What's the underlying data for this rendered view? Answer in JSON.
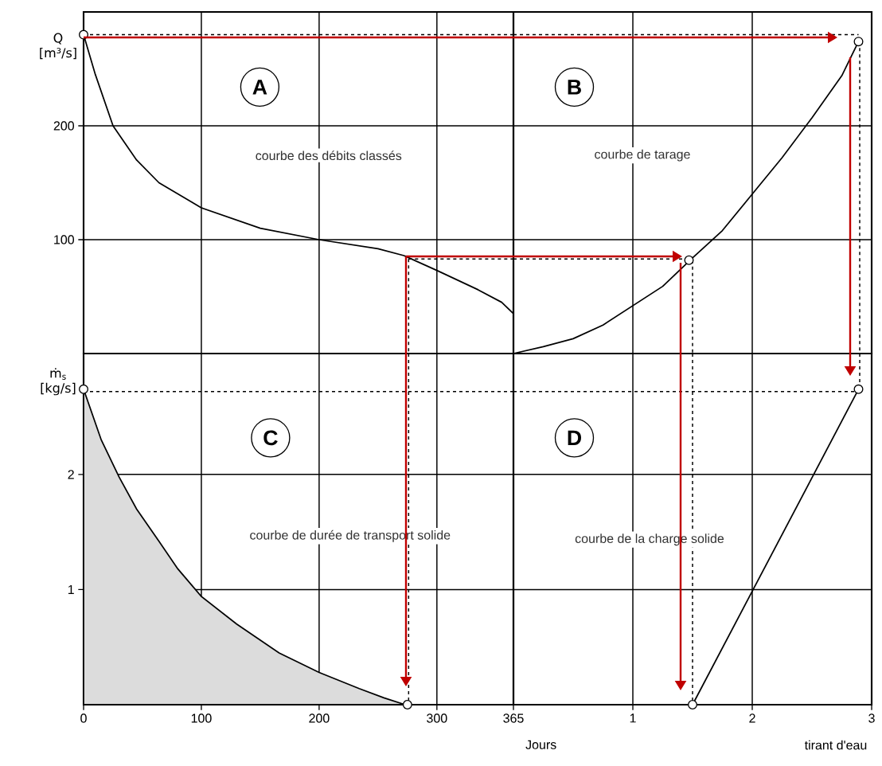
{
  "chart_data": [
    {
      "type": "line",
      "title": "A",
      "subtitle": "courbe des débits classés",
      "ylabel": "Q [m³/s]",
      "xlim": [
        0,
        365
      ],
      "ylim": [
        0,
        300
      ],
      "xticks": [
        0,
        100,
        200,
        300,
        365
      ],
      "yticks": [
        100,
        200
      ],
      "tick_labels": "y",
      "grid": true,
      "series": [
        {
          "color": "#000000",
          "x": [
            0,
            10,
            25,
            45,
            64,
            100,
            150,
            200,
            250,
            272,
            300,
            335,
            355,
            362,
            365,
            365
          ],
          "values": [
            280,
            245,
            200,
            170,
            150,
            128,
            110,
            100,
            92,
            86,
            73,
            56,
            45,
            38,
            35,
            0
          ]
        },
        {
          "color": "#000000",
          "line_style": "dashed",
          "x": [
            0,
            365
          ],
          "values": [
            280,
            280
          ]
        },
        {
          "color": "#000000",
          "line_style": "dashed",
          "x": [
            276,
            365
          ],
          "values": [
            83,
            83
          ]
        },
        {
          "color": "#000000",
          "line_style": "dashed",
          "x": [
            276,
            276
          ],
          "values": [
            83,
            0
          ]
        },
        {
          "type": "scatter",
          "marker": "circle",
          "color": "#000000",
          "x": [
            0
          ],
          "values": [
            280
          ]
        }
      ]
    },
    {
      "type": "line",
      "title": "B",
      "subtitle": "courbe de tarage",
      "xlim": [
        0,
        3
      ],
      "ylim": [
        0,
        300
      ],
      "xticks": [
        1,
        2,
        3
      ],
      "yticks": [
        100,
        200
      ],
      "tick_labels": false,
      "grid": true,
      "series": [
        {
          "color": "#000000",
          "x": [
            0,
            0.25,
            0.5,
            0.75,
            1,
            1.25,
            1.5,
            1.75,
            2,
            2.25,
            2.5,
            2.75,
            2.89
          ],
          "values": [
            0,
            6,
            13,
            25,
            42,
            59,
            84,
            108,
            140,
            172,
            207,
            244,
            274
          ]
        },
        {
          "color": "#000000",
          "line_style": "dashed",
          "x": [
            0,
            2.89
          ],
          "values": [
            280,
            280
          ]
        },
        {
          "color": "#000000",
          "line_style": "dashed",
          "x": [
            0,
            1.47
          ],
          "values": [
            83,
            83
          ]
        },
        {
          "color": "#000000",
          "line_style": "dashed",
          "x": [
            1.5,
            1.5
          ],
          "values": [
            82,
            0
          ]
        },
        {
          "color": "#000000",
          "line_style": "dashed",
          "x": [
            2.9,
            2.9
          ],
          "values": [
            274,
            0
          ]
        },
        {
          "type": "scatter",
          "marker": "circle",
          "color": "#000000",
          "x": [
            2.89,
            1.47
          ],
          "values": [
            274,
            82
          ]
        }
      ]
    },
    {
      "type": "line",
      "title": "C",
      "subtitle": "courbe de durée de transport solide",
      "ylabel": "ṁ$_{s}$ [kg/s]",
      "xlabel": "Jours",
      "xlim": [
        0,
        365
      ],
      "ylim": [
        0,
        3.05
      ],
      "xticks": [
        0,
        100,
        200,
        300,
        365
      ],
      "yticks": [
        1,
        2
      ],
      "grid": true,
      "series": [
        {
          "type": "area",
          "color": "#dcdcdc",
          "x": [
            0,
            15,
            30,
            45,
            64,
            80,
            100,
            130,
            166,
            200,
            234,
            255,
            273
          ],
          "values": [
            2.74,
            2.3,
            1.98,
            1.7,
            1.42,
            1.18,
            0.94,
            0.7,
            0.45,
            0.28,
            0.14,
            0.06,
            0
          ]
        },
        {
          "color": "#000000",
          "line_style": "dashed",
          "x": [
            0,
            365
          ],
          "values": [
            2.72,
            2.72
          ]
        },
        {
          "color": "#000000",
          "line_style": "dashed",
          "x": [
            276,
            276
          ],
          "values": [
            3.05,
            0
          ]
        },
        {
          "type": "scatter",
          "marker": "circle",
          "color": "#000000",
          "x": [
            0,
            275
          ],
          "values": [
            2.74,
            0
          ]
        }
      ]
    },
    {
      "type": "line",
      "title": "D",
      "subtitle": "courbe de la charge solide",
      "xlabel": "tirant d'eau",
      "xlim": [
        0,
        3
      ],
      "ylim": [
        0,
        3.05
      ],
      "xticks": [
        1,
        2,
        3
      ],
      "yticks": [
        1,
        2
      ],
      "tick_labels": "x",
      "grid": true,
      "series": [
        {
          "color": "#000000",
          "x": [
            1.5,
            2.89
          ],
          "values": [
            0,
            2.74
          ]
        },
        {
          "color": "#000000",
          "line_style": "dashed",
          "x": [
            0,
            2.89
          ],
          "values": [
            2.72,
            2.72
          ]
        },
        {
          "color": "#000000",
          "line_style": "dashed",
          "x": [
            1.5,
            1.5
          ],
          "values": [
            3.05,
            0
          ]
        },
        {
          "color": "#000000",
          "line_style": "dashed",
          "x": [
            2.9,
            2.9
          ],
          "values": [
            3.05,
            2.74
          ]
        },
        {
          "type": "scatter",
          "marker": "circle",
          "color": "#000000",
          "x": [
            2.89,
            1.5
          ],
          "values": [
            2.74,
            0
          ]
        }
      ]
    }
  ]
}
